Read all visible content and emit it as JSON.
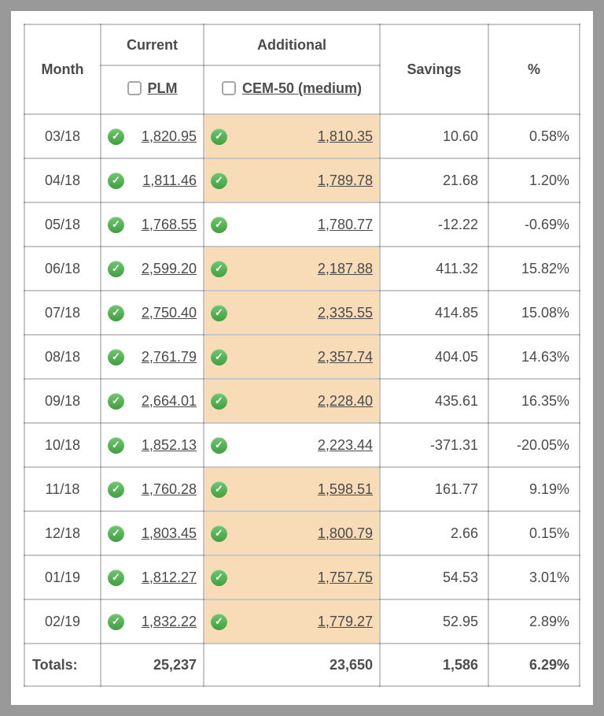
{
  "table": {
    "header": {
      "month": "Month",
      "current_group": "Current",
      "current_plan": "PLM",
      "additional_group": "Additional",
      "additional_plan": "CEM-50 (medium)",
      "savings": "Savings",
      "percent": "%"
    },
    "rows": [
      {
        "month": "03/18",
        "current": "1,820.95",
        "additional": "1,810.35",
        "highlight": true,
        "savings": "10.60",
        "percent": "0.58%"
      },
      {
        "month": "04/18",
        "current": "1,811.46",
        "additional": "1,789.78",
        "highlight": true,
        "savings": "21.68",
        "percent": "1.20%"
      },
      {
        "month": "05/18",
        "current": "1,768.55",
        "additional": "1,780.77",
        "highlight": false,
        "savings": "-12.22",
        "percent": "-0.69%"
      },
      {
        "month": "06/18",
        "current": "2,599.20",
        "additional": "2,187.88",
        "highlight": true,
        "savings": "411.32",
        "percent": "15.82%"
      },
      {
        "month": "07/18",
        "current": "2,750.40",
        "additional": "2,335.55",
        "highlight": true,
        "savings": "414.85",
        "percent": "15.08%"
      },
      {
        "month": "08/18",
        "current": "2,761.79",
        "additional": "2,357.74",
        "highlight": true,
        "savings": "404.05",
        "percent": "14.63%"
      },
      {
        "month": "09/18",
        "current": "2,664.01",
        "additional": "2,228.40",
        "highlight": true,
        "savings": "435.61",
        "percent": "16.35%"
      },
      {
        "month": "10/18",
        "current": "1,852.13",
        "additional": "2,223.44",
        "highlight": false,
        "savings": "-371.31",
        "percent": "-20.05%"
      },
      {
        "month": "11/18",
        "current": "1,760.28",
        "additional": "1,598.51",
        "highlight": true,
        "savings": "161.77",
        "percent": "9.19%"
      },
      {
        "month": "12/18",
        "current": "1,803.45",
        "additional": "1,800.79",
        "highlight": true,
        "savings": "2.66",
        "percent": "0.15%"
      },
      {
        "month": "01/19",
        "current": "1,812.27",
        "additional": "1,757.75",
        "highlight": true,
        "savings": "54.53",
        "percent": "3.01%"
      },
      {
        "month": "02/19",
        "current": "1,832.22",
        "additional": "1,779.27",
        "highlight": true,
        "savings": "52.95",
        "percent": "2.89%"
      }
    ],
    "totals": {
      "label": "Totals:",
      "current": "25,237",
      "additional": "23,650",
      "savings": "1,586",
      "percent": "6.29%"
    }
  },
  "icons": {
    "row_status": "check-circle-icon",
    "plan_select": "checkbox-unchecked",
    "check_glyph": "✓"
  },
  "colors": {
    "frame": "#999999",
    "highlight": "#f8dcb8",
    "check_green": "#4fae4f",
    "text": "#4a4a4a",
    "border": "#bfbfbf"
  }
}
